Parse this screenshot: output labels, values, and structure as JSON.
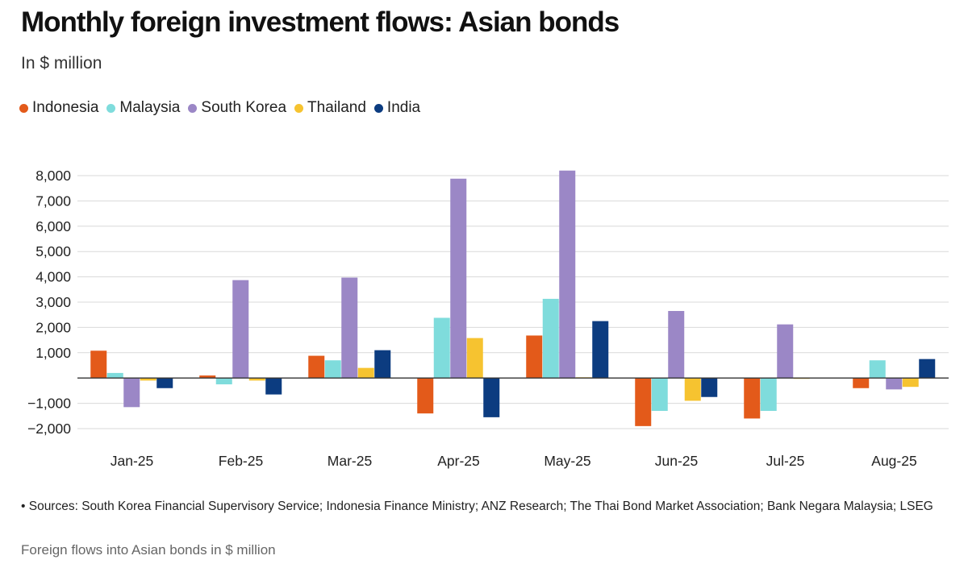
{
  "title": "Monthly foreign investment flows: Asian bonds",
  "subtitle": "In $ million",
  "sources": "• Sources: South Korea Financial Supervisory Service; Indonesia Finance Ministry; ANZ Research; The Thai Bond Market Association; Bank Negara Malaysia; LSEG",
  "caption": "Foreign flows into Asian bonds in $ million",
  "chart_data": {
    "type": "bar",
    "title": "Monthly foreign investment flows: Asian bonds",
    "ylabel": "In $ million",
    "xlabel": "",
    "ylim": [
      -2000,
      8000
    ],
    "yticks": [
      -2000,
      -1000,
      0,
      1000,
      2000,
      3000,
      4000,
      5000,
      6000,
      7000,
      8000
    ],
    "ytick_labels": [
      "−2,000",
      "−1,000",
      "",
      "1,000",
      "2,000",
      "3,000",
      "4,000",
      "5,000",
      "6,000",
      "7,000",
      "8,000"
    ],
    "grid": true,
    "legend_position": "top-left",
    "categories": [
      "Jan-25",
      "Feb-25",
      "Mar-25",
      "Apr-25",
      "May-25",
      "Jun-25",
      "Jul-25",
      "Aug-25"
    ],
    "series": [
      {
        "name": "Indonesia",
        "color": "#e35a1a",
        "values": [
          1080,
          100,
          880,
          -1400,
          1680,
          -1900,
          -1600,
          -400
        ]
      },
      {
        "name": "Malaysia",
        "color": "#7fdcdc",
        "values": [
          200,
          -250,
          700,
          2380,
          3130,
          -1300,
          -1300,
          700
        ]
      },
      {
        "name": "South Korea",
        "color": "#9b87c6",
        "values": [
          -1150,
          3870,
          3970,
          7880,
          8200,
          2650,
          2120,
          -450
        ]
      },
      {
        "name": "Thailand",
        "color": "#f6c330",
        "values": [
          -100,
          -100,
          400,
          1580,
          30,
          -900,
          -30,
          -350
        ]
      },
      {
        "name": "India",
        "color": "#0c3c80",
        "values": [
          -400,
          -650,
          1100,
          -1550,
          2250,
          -750,
          0,
          750
        ]
      }
    ]
  }
}
